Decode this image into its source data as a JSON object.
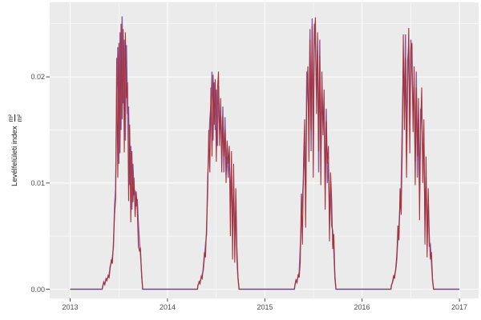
{
  "style": {
    "figure_bg": "#ffffff",
    "panel_bg": "#ebebeb",
    "grid_major_color": "#ffffff",
    "grid_minor_color": "#ffffff",
    "tick_mark_color": "#333333",
    "tick_label_color": "#4d4d4d",
    "axis_title_color": "#1a1a1a"
  },
  "chart_data": {
    "type": "line",
    "title": "",
    "xlabel": "",
    "ylabel_text": "Levélfelületi index",
    "ylabel_frac_numerator": "m²",
    "ylabel_frac_denominator": "m²",
    "legend": "none",
    "grid": "on",
    "x_axis": {
      "ticks": [
        "2013",
        "2014",
        "2015",
        "2016",
        "2017"
      ],
      "tick_values": [
        2013,
        2014,
        2015,
        2016,
        2017
      ],
      "minor_tick_values": [
        2013.5,
        2014.5,
        2015.5,
        2016.5
      ],
      "range": [
        2012.79,
        2017.21
      ]
    },
    "y_axis": {
      "ticks": [
        "0.00",
        "0.01",
        "0.02"
      ],
      "tick_values": [
        0.0,
        0.01,
        0.02
      ],
      "minor_tick_values": [
        0.005,
        0.015,
        0.025
      ],
      "range": [
        -0.0009,
        0.027
      ]
    },
    "baseline_value": 0,
    "data_span": [
      2013.0,
      2017.0
    ],
    "series": [
      {
        "name": "series-purple",
        "color": "#8b5aa0",
        "line_width": 1.4,
        "seasons": [
          {
            "start": 2013.334,
            "step": 0.01112,
            "values": [
              0.0002,
              0.0007,
              0.0005,
              0.0009,
              0.001,
              0.0011,
              0.0014,
              0.0022,
              0.0025,
              0.003,
              0.004,
              0.0078,
              0.0095,
              0.018,
              0.0228,
              0.0118,
              0.0242,
              0.015,
              0.0257,
              0.0175,
              0.0235,
              0.014,
              0.023,
              0.0165,
              0.0172,
              0.0098,
              0.0135,
              0.0075,
              0.0118,
              0.009,
              0.0092,
              0.0078,
              0.0085,
              0.0062,
              0.0045,
              0.0032,
              0.0015,
              0.0
            ]
          },
          {
            "start": 2014.313,
            "step": 0.01112,
            "values": [
              0.0004,
              0.0006,
              0.0008,
              0.001,
              0.0014,
              0.0018,
              0.003,
              0.0042,
              0.0052,
              0.0105,
              0.013,
              0.016,
              0.0172,
              0.0205,
              0.014,
              0.0195,
              0.015,
              0.0188,
              0.0135,
              0.0192,
              0.015,
              0.0165,
              0.0128,
              0.0172,
              0.011,
              0.0162,
              0.0118,
              0.0125,
              0.0105,
              0.0128,
              0.0085,
              0.011,
              0.0062,
              0.0095,
              0.0048,
              0.0075,
              0.0028,
              0.001,
              0.0
            ]
          },
          {
            "start": 2015.309,
            "step": 0.01112,
            "values": [
              0.0003,
              0.0009,
              0.0008,
              0.0012,
              0.0016,
              0.004,
              0.0065,
              0.0085,
              0.0105,
              0.0135,
              0.009,
              0.0205,
              0.0185,
              0.0155,
              0.0245,
              0.013,
              0.0255,
              0.014,
              0.025,
              0.023,
              0.0185,
              0.0225,
              0.011,
              0.0235,
              0.0125,
              0.0185,
              0.016,
              0.0165,
              0.0095,
              0.017,
              0.01,
              0.012,
              0.007,
              0.0095,
              0.006,
              0.0055,
              0.0035,
              0.001,
              0.0
            ]
          },
          {
            "start": 2016.301,
            "step": 0.01112,
            "values": [
              0.0004,
              0.0006,
              0.001,
              0.0014,
              0.0018,
              0.0028,
              0.0048,
              0.006,
              0.008,
              0.0095,
              0.0155,
              0.021,
              0.0175,
              0.024,
              0.0125,
              0.0215,
              0.023,
              0.015,
              0.0235,
              0.0205,
              0.0165,
              0.019,
              0.012,
              0.0205,
              0.0105,
              0.016,
              0.009,
              0.017,
              0.0165,
              0.012,
              0.014,
              0.0065,
              0.0105,
              0.0052,
              0.008,
              0.004,
              0.0042,
              0.0025,
              0.0008,
              0.0
            ]
          }
        ]
      },
      {
        "name": "series-red",
        "color": "#a5333c",
        "line_width": 1.1,
        "seasons": [
          {
            "start": 2013.334,
            "step": 0.01112,
            "values": [
              0.0003,
              0.0006,
              0.0004,
              0.001,
              0.0008,
              0.0013,
              0.0011,
              0.002,
              0.0028,
              0.0024,
              0.0045,
              0.007,
              0.0085,
              0.0218,
              0.0105,
              0.0232,
              0.0128,
              0.025,
              0.016,
              0.0245,
              0.0129,
              0.0242,
              0.018,
              0.0195,
              0.0083,
              0.0155,
              0.0063,
              0.013,
              0.0082,
              0.0105,
              0.0068,
              0.0092,
              0.0075,
              0.004,
              0.0036,
              0.0038,
              0.0012,
              0.0
            ]
          },
          {
            "start": 2014.313,
            "step": 0.01112,
            "values": [
              0.0003,
              0.0007,
              0.0005,
              0.0012,
              0.001,
              0.0022,
              0.0035,
              0.003,
              0.006,
              0.009,
              0.015,
              0.011,
              0.019,
              0.0125,
              0.0202,
              0.0155,
              0.0198,
              0.012,
              0.0188,
              0.0205,
              0.0135,
              0.018,
              0.011,
              0.0162,
              0.0125,
              0.015,
              0.01,
              0.014,
              0.0118,
              0.0135,
              0.005,
              0.013,
              0.0028,
              0.0118,
              0.0025,
              0.0095,
              0.004,
              0.0012,
              0.0
            ]
          },
          {
            "start": 2015.309,
            "step": 0.01112,
            "values": [
              0.0004,
              0.0008,
              0.0006,
              0.0014,
              0.0011,
              0.0025,
              0.009,
              0.0042,
              0.012,
              0.016,
              0.0058,
              0.018,
              0.021,
              0.012,
              0.0235,
              0.015,
              0.0248,
              0.0105,
              0.0238,
              0.0256,
              0.0165,
              0.0242,
              0.013,
              0.022,
              0.0098,
              0.0205,
              0.0145,
              0.0188,
              0.0075,
              0.0158,
              0.0118,
              0.0135,
              0.0045,
              0.011,
              0.0085,
              0.0038,
              0.0052,
              0.0014,
              0.0
            ]
          },
          {
            "start": 2016.301,
            "step": 0.01112,
            "values": [
              0.0003,
              0.0007,
              0.0013,
              0.001,
              0.002,
              0.0033,
              0.006,
              0.0046,
              0.0095,
              0.007,
              0.013,
              0.024,
              0.015,
              0.0218,
              0.0105,
              0.0195,
              0.0246,
              0.0128,
              0.0225,
              0.0232,
              0.0148,
              0.021,
              0.0098,
              0.019,
              0.0125,
              0.018,
              0.0065,
              0.0155,
              0.019,
              0.01,
              0.016,
              0.0042,
              0.0125,
              0.003,
              0.0095,
              0.0052,
              0.0028,
              0.0035,
              0.001,
              0.0
            ]
          }
        ]
      }
    ]
  }
}
